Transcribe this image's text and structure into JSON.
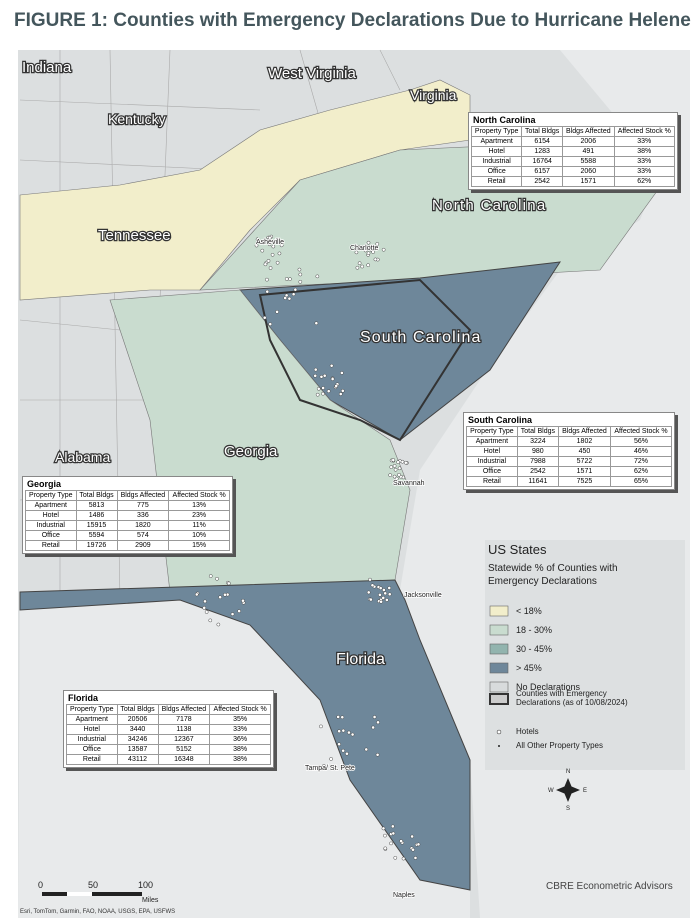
{
  "title": "FIGURE 1: Counties with Emergency Declarations Due to Hurricane Helene",
  "state_labels": [
    "Indiana",
    "West Virginia",
    "Virginia",
    "Kentucky",
    "North Carolina",
    "Tennessee",
    "South Carolina",
    "Alabama",
    "Georgia",
    "Florida"
  ],
  "city_labels": [
    "Asheville",
    "Charlotte",
    "Savannah",
    "Jacksonville",
    "Tampa/ St. Pete",
    "Naples"
  ],
  "tables": [
    {
      "title": "North Carolina",
      "columns": [
        "Property Type",
        "Total Bldgs",
        "Bldgs Affected",
        "Affected Stock %"
      ],
      "rows": [
        [
          "Apartment",
          "6154",
          "2006",
          "33%"
        ],
        [
          "Hotel",
          "1283",
          "491",
          "38%"
        ],
        [
          "Industrial",
          "16764",
          "5588",
          "33%"
        ],
        [
          "Office",
          "6157",
          "2060",
          "33%"
        ],
        [
          "Retail",
          "2542",
          "1571",
          "62%"
        ]
      ]
    },
    {
      "title": "South Carolina",
      "columns": [
        "Property Type",
        "Total Bldgs",
        "Bldgs Affected",
        "Affected Stock %"
      ],
      "rows": [
        [
          "Apartment",
          "3224",
          "1802",
          "56%"
        ],
        [
          "Hotel",
          "980",
          "450",
          "46%"
        ],
        [
          "Industrial",
          "7988",
          "5722",
          "72%"
        ],
        [
          "Office",
          "2542",
          "1571",
          "62%"
        ],
        [
          "Retail",
          "11641",
          "7525",
          "65%"
        ]
      ]
    },
    {
      "title": "Georgia",
      "columns": [
        "Property Type",
        "Total Bldgs",
        "Bldgs Affected",
        "Affected Stock %"
      ],
      "rows": [
        [
          "Apartment",
          "5813",
          "775",
          "13%"
        ],
        [
          "Hotel",
          "1486",
          "336",
          "23%"
        ],
        [
          "Industrial",
          "15915",
          "1820",
          "11%"
        ],
        [
          "Office",
          "5594",
          "574",
          "10%"
        ],
        [
          "Retail",
          "19726",
          "2909",
          "15%"
        ]
      ]
    },
    {
      "title": "Florida",
      "columns": [
        "Property Type",
        "Total Bldgs",
        "Bldgs Affected",
        "Affected Stock %"
      ],
      "rows": [
        [
          "Apartment",
          "20506",
          "7178",
          "35%"
        ],
        [
          "Hotel",
          "3440",
          "1138",
          "33%"
        ],
        [
          "Industrial",
          "34246",
          "12367",
          "36%"
        ],
        [
          "Office",
          "13587",
          "5152",
          "38%"
        ],
        [
          "Retail",
          "43112",
          "16348",
          "38%"
        ]
      ]
    }
  ],
  "legend": {
    "title": "US States",
    "subtitle": "Statewide % of Counties with Emergency Declarations",
    "items": [
      {
        "label": "< 18%",
        "color": "#f2eecb"
      },
      {
        "label": "18 - 30%",
        "color": "#c9dccf"
      },
      {
        "label": "30 - 45%",
        "color": "#92b4ae"
      },
      {
        "label": "> 45%",
        "color": "#6e879a"
      },
      {
        "label": "No Declarations",
        "color": "#d8dbdc"
      }
    ],
    "counties": "Counties with Emergency Declarations (as of 10/08/2024)",
    "hotels": "Hotels",
    "other": "All Other Property Types"
  },
  "scale": {
    "ticks": [
      0,
      50,
      100
    ],
    "unit": "Miles"
  },
  "compass": [
    "N",
    "E",
    "S",
    "W"
  ],
  "credits": "Esri, TomTom, Garmin, FAO, NOAA, USGS, EPA, USFWS",
  "brand": "CBRE Econometric Advisors"
}
